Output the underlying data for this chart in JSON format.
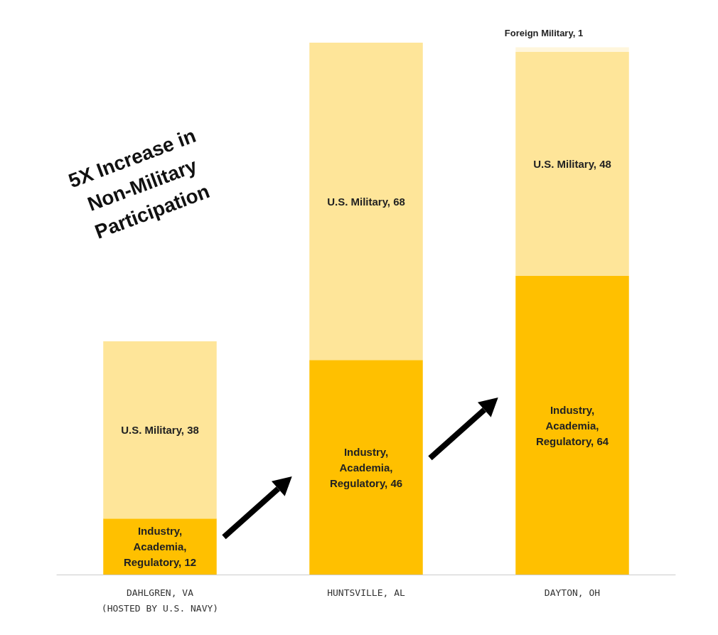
{
  "chart_data": {
    "type": "bar",
    "title": "5X Increase in\nNon-Military\nParticipation",
    "categories": [
      "DAHLGREN, VA\n(HOSTED BY U.S. NAVY)",
      "HUNTSVILLE, AL",
      "DAYTON, OH"
    ],
    "stacked": true,
    "series": [
      {
        "color": "#ffc000",
        "values": [
          12,
          46,
          64
        ],
        "value_labels": [
          "Industry,\nAcademia,\nRegulatory, 12",
          "Industry,\nAcademia,\nRegulatory, 46",
          "Industry,\nAcademia,\nRegulatory, 64"
        ]
      },
      {
        "color": "#fee599",
        "values": [
          38,
          68,
          48
        ],
        "value_labels": [
          "U.S. Military, 38",
          "U.S. Military, 68",
          "U.S. Military, 48"
        ]
      },
      {
        "color": "#fff6dc",
        "values": [
          null,
          null,
          1
        ],
        "value_labels": [
          null,
          null,
          "Foreign Military, 1"
        ]
      }
    ]
  }
}
